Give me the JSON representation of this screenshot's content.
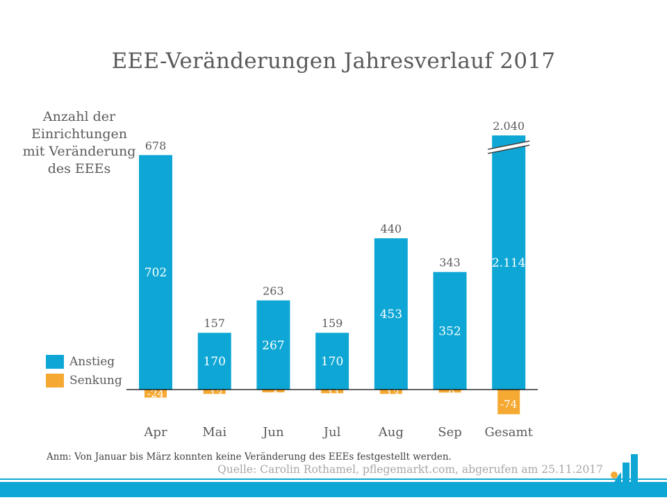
{
  "chart_data": {
    "type": "bar",
    "title": "EEE-Veränderungen Jahresverlauf 2017",
    "ylabel": "Anzahl der Einrichtungen mit Veränderung des EEEs",
    "categories": [
      "Apr",
      "Mai",
      "Jun",
      "Jul",
      "Aug",
      "Sep",
      "Gesamt"
    ],
    "series": [
      {
        "name": "Anstieg",
        "color": "#0ea7d5",
        "values": [
          702,
          170,
          267,
          170,
          453,
          352,
          2114
        ],
        "labels": [
          "702",
          "170",
          "267",
          "170",
          "453",
          "352",
          "2.114"
        ]
      },
      {
        "name": "Senkung",
        "color": "#f5a932",
        "values": [
          -24,
          -13,
          -4,
          -11,
          -13,
          -9,
          -74
        ],
        "labels": [
          "-24",
          "-13",
          "-4",
          "-11",
          "-13",
          "-9",
          "-74"
        ]
      }
    ],
    "net_values": [
      678,
      157,
      263,
      159,
      440,
      343,
      2040
    ],
    "net_labels": [
      "678",
      "157",
      "263",
      "159",
      "440",
      "343",
      "2.040"
    ],
    "axis_break_category": "Gesamt",
    "legend_position": "left",
    "grid": false
  },
  "note": "Anm: Von Januar bis März konnten keine Veränderung des EEEs festgestellt werden.",
  "source": "Quelle: Carolin Rothamel, pflegemarkt.com, abgerufen am 25.11.2017",
  "colors": {
    "accent": "#0ea7d5",
    "secondary": "#f5a932",
    "text": "#595959"
  }
}
